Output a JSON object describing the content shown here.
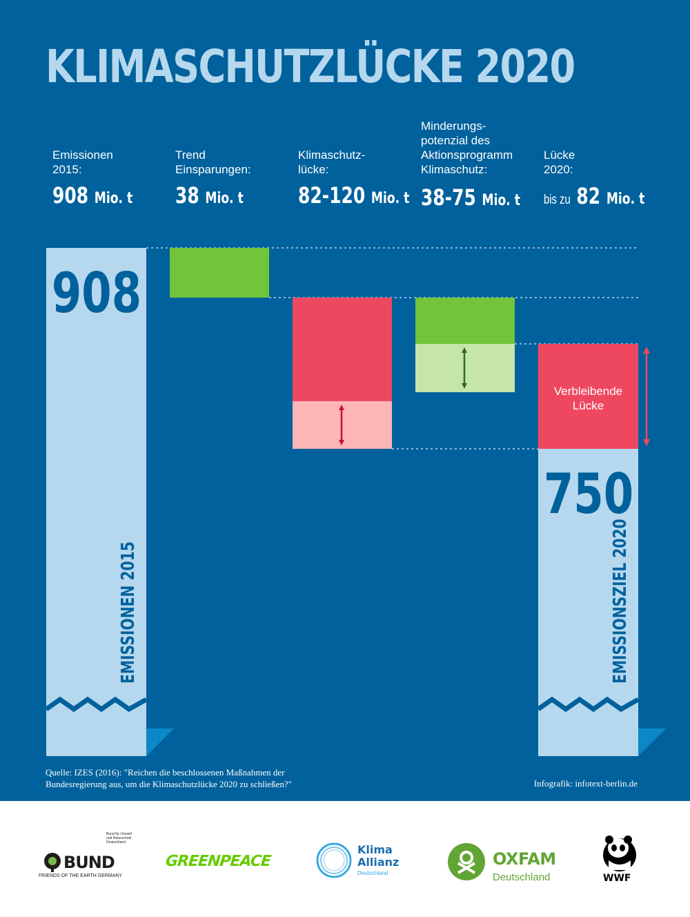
{
  "title": "KLIMASCHUTZLÜCKE 2020",
  "headers": [
    {
      "label": "Emissionen\n2015:",
      "prefix": "",
      "value": "908",
      "unit": "Mio. t"
    },
    {
      "label": "Trend\nEinsparungen:",
      "prefix": "",
      "value": "38",
      "unit": "Mio. t"
    },
    {
      "label": "Klimaschutz-\nlücke:",
      "prefix": "",
      "value": "82-120",
      "unit": "Mio. t"
    },
    {
      "label": "Minderungs-\npotenzial des\nAktionsprogramm\nKlimaschutz:",
      "prefix": "",
      "value": "38-75",
      "unit": "Mio. t"
    },
    {
      "label": "Lücke\n2020:",
      "prefix": "bis zu",
      "value": "82",
      "unit": "Mio. t"
    }
  ],
  "chart_data": {
    "type": "waterfall",
    "unit": "Mio. t",
    "bars": [
      {
        "name": "Emissionen 2015",
        "value": 908,
        "label": "908",
        "axis_label": "EMISSIONEN 2015",
        "color": "#b6d8ee"
      },
      {
        "name": "Trend Einsparungen",
        "from": 908,
        "to": 870,
        "color": "#72c43b"
      },
      {
        "name": "Klimaschutzlücke",
        "from": 870,
        "to": 750,
        "range_min": 82,
        "range_max": 120,
        "color": "#ee4860",
        "light_color": "#fdb5b6"
      },
      {
        "name": "Minderungspotenzial",
        "from": 870,
        "to": 795,
        "range_min": 38,
        "range_max": 75,
        "color": "#72c43b",
        "light_color": "#c5e6a8"
      },
      {
        "name": "Verbleibende Lücke",
        "from": 832,
        "to": 750,
        "label": "Verbleibende\nLücke",
        "color": "#ee4860"
      },
      {
        "name": "Emissionsziel 2020",
        "value": 750,
        "label": "750",
        "axis_label": "EMISSIONSZIEL 2020",
        "color": "#b6d8ee"
      }
    ]
  },
  "source": "Quelle: IZES (2016):  \"Reichen die beschlossenen Maßnahmen der\nBundesregierung aus, um die Klimaschutzlücke 2020 zu schließen?\"",
  "credit": "Infografik: infotext-berlin.de",
  "logos": {
    "bund": {
      "name": "BUND",
      "sub": "FRIENDS OF THE EARTH GERMANY",
      "side": "Bund für Umwelt und Naturschutz Deutschland"
    },
    "greenpeace": {
      "name": "GREENPEACE"
    },
    "klima": {
      "line1": "Klima",
      "line2": "Allianz",
      "line3": "Deutschland"
    },
    "oxfam": {
      "name": "OXFAM",
      "sub": "Deutschland"
    },
    "wwf": {
      "name": "WWF"
    }
  },
  "colors": {
    "background": "#00619c",
    "light_blue": "#b6d8ee",
    "green": "#72c43b",
    "red": "#ee4860"
  }
}
